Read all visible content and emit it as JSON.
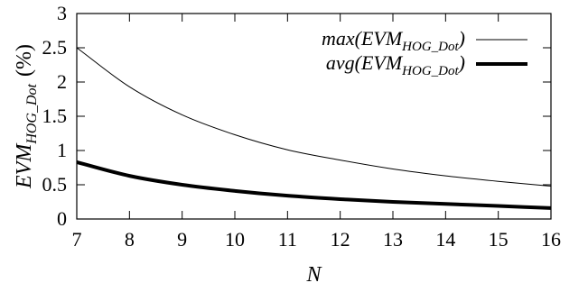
{
  "chart_data": {
    "type": "line",
    "xlabel": "N",
    "ylabel": "EVM_HOG_Dot (%)",
    "ylabel_parts": {
      "main": "EVM",
      "sub": "HOG_Dot",
      "unit": "(%)"
    },
    "xlim": [
      7,
      16
    ],
    "ylim": [
      0,
      3
    ],
    "x_ticks": [
      7,
      8,
      9,
      10,
      11,
      12,
      13,
      14,
      15,
      16
    ],
    "y_ticks": [
      0,
      0.5,
      1,
      1.5,
      2,
      2.5,
      3
    ],
    "y_tick_labels": [
      "0",
      "0.5",
      "1",
      "1.5",
      "2",
      "2.5",
      "3"
    ],
    "grid": false,
    "legend_position": "top-right",
    "x": [
      7,
      8,
      9,
      10,
      11,
      12,
      13,
      14,
      15,
      16
    ],
    "series": [
      {
        "name": "max(EVM_HOG_Dot)",
        "name_parts": {
          "pre": "max(EVM",
          "sub": "HOG_Dot",
          "post": ")"
        },
        "color": "#000000",
        "line": "thin",
        "values": [
          2.5,
          1.93,
          1.52,
          1.23,
          1.01,
          0.86,
          0.73,
          0.63,
          0.55,
          0.48
        ]
      },
      {
        "name": "avg(EVM_HOG_Dot)",
        "name_parts": {
          "pre": "avg(EVM",
          "sub": "HOG_Dot",
          "post": ")"
        },
        "color": "#000000",
        "line": "thick",
        "values": [
          0.83,
          0.63,
          0.5,
          0.41,
          0.34,
          0.29,
          0.25,
          0.22,
          0.19,
          0.16
        ]
      }
    ]
  }
}
